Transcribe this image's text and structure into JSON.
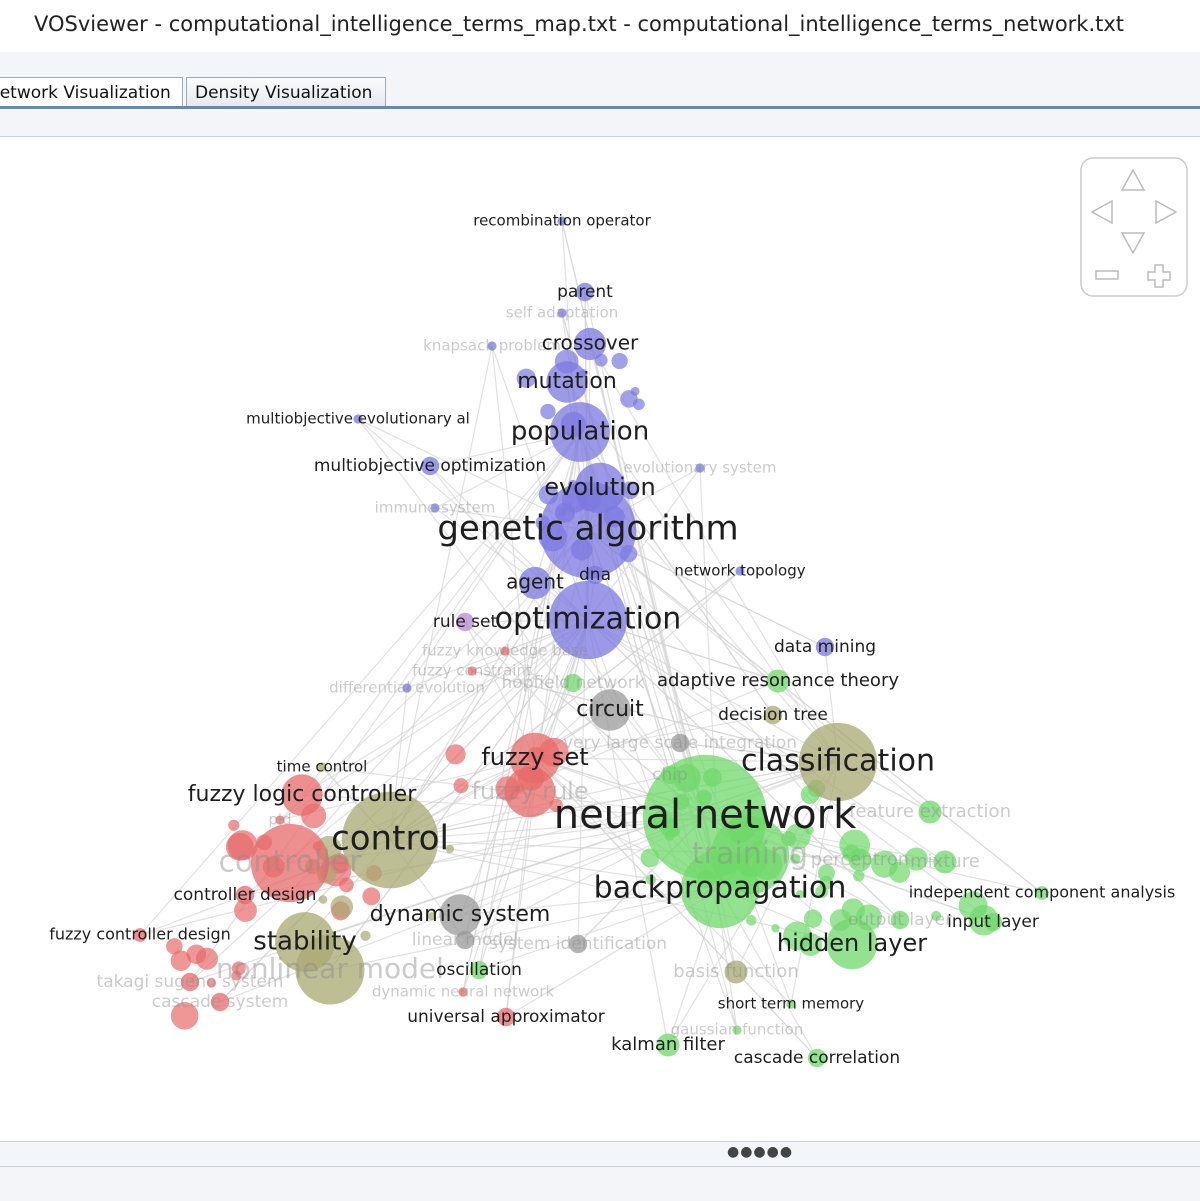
{
  "window": {
    "title": "VOSviewer - computational_intelligence_terms_map.txt - computational_intelligence_terms_network.txt"
  },
  "tabs": [
    "Network Visualization",
    "Density Visualization"
  ],
  "map": {
    "labels": [
      "recombination operator",
      "parent",
      "self adaptation",
      "knapsack problem",
      "crossover",
      "mutation",
      "multiobjective evolutionary al",
      "population",
      "multiobjective optimization",
      "evolutionary system",
      "evolution",
      "immune system",
      "genetic algorithm",
      "network topology",
      "agent",
      "dna",
      "rule set",
      "optimization",
      "fuzzy knowledge base",
      "fuzzy constraint",
      "differential evolution",
      "hopfield network",
      "adaptive resonance theory",
      "data mining",
      "circuit",
      "decision tree",
      "very large scale integration",
      "time control",
      "fuzzy set",
      "chip",
      "classification",
      "fuzzy logic controller",
      "fuzzy rule",
      "pid",
      "neural network",
      "feature extraction",
      "control",
      "controller",
      "training",
      "perceptron",
      "mixture",
      "controller design",
      "backpropagation",
      "independent component analysis",
      "dynamic system",
      "output layer",
      "input layer",
      "fuzzy controller design",
      "stability",
      "linear model",
      "system identification",
      "hidden layer",
      "nonlinear model",
      "oscillation",
      "basis function",
      "takagi sugeno system",
      "dynamic neural network",
      "cascade system",
      "universal approximator",
      "short term memory",
      "gaussian function",
      "kalman filter",
      "cascade correlation"
    ]
  }
}
